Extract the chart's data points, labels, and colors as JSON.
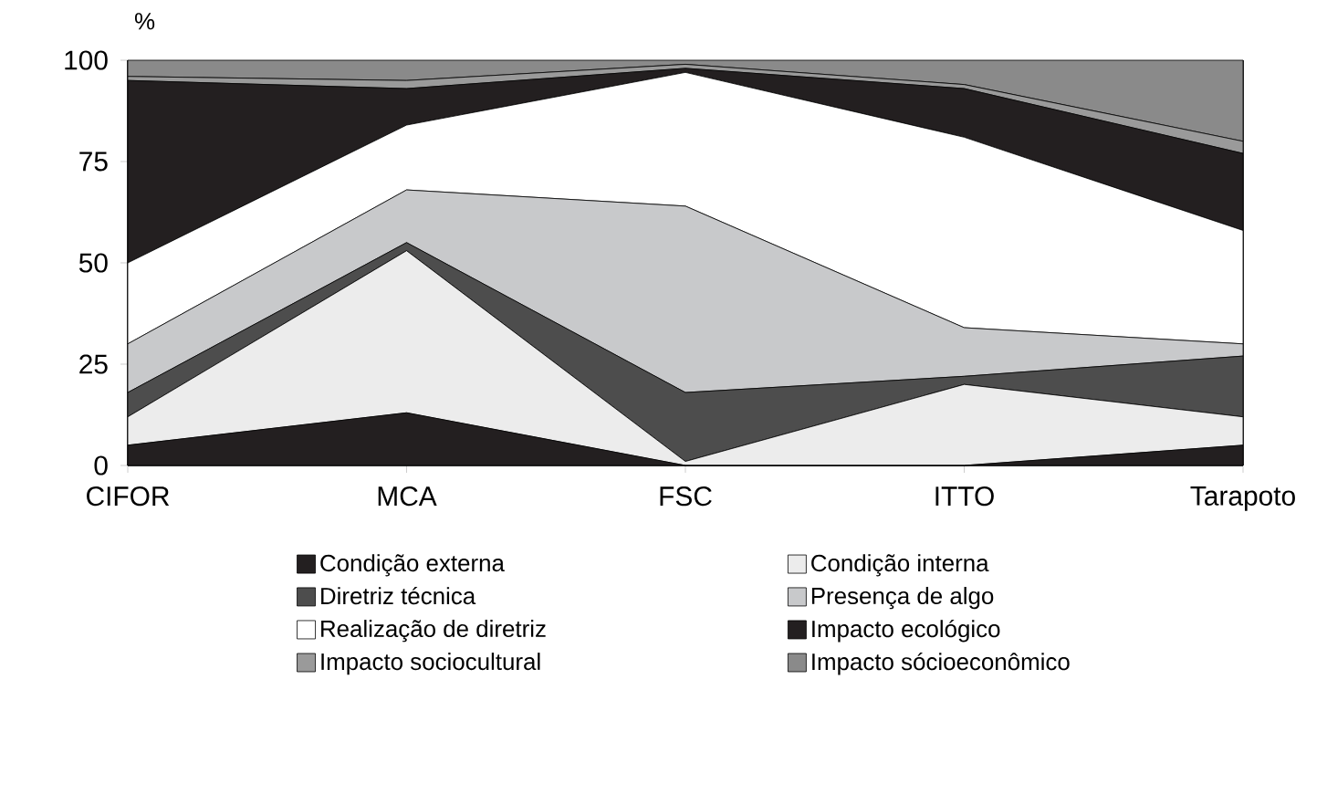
{
  "chart_data": {
    "type": "area",
    "stacked": true,
    "ylabel": "%",
    "categories": [
      "CIFOR",
      "MCA",
      "FSC",
      "ITTO",
      "Tarapoto"
    ],
    "series": [
      {
        "name": "Condição externa",
        "color": "#231f20",
        "values": [
          5,
          13,
          0,
          0,
          5
        ]
      },
      {
        "name": "Condição interna",
        "color": "#ececec",
        "values": [
          7,
          40,
          1,
          20,
          7
        ]
      },
      {
        "name": "Diretriz técnica",
        "color": "#4d4d4d",
        "values": [
          6,
          2,
          17,
          2,
          15
        ]
      },
      {
        "name": "Presença de algo",
        "color": "#c8c9cb",
        "values": [
          12,
          13,
          46,
          12,
          3
        ]
      },
      {
        "name": "Realização de diretriz",
        "color": "#ffffff",
        "values": [
          20,
          16,
          33,
          47,
          28
        ]
      },
      {
        "name": "Impacto ecológico",
        "color": "#231f20",
        "values": [
          45,
          9,
          1,
          12,
          19
        ]
      },
      {
        "name": "Impacto sociocultural",
        "color": "#9a9a9a",
        "values": [
          1,
          2,
          1,
          1,
          3
        ]
      },
      {
        "name": "Impacto sócioeconômico",
        "color": "#8a8a8a",
        "values": [
          4,
          5,
          1,
          6,
          20
        ]
      }
    ],
    "ylim": [
      0,
      100
    ],
    "yticks": [
      0,
      25,
      50,
      75,
      100
    ],
    "grid": false,
    "legend": "bottom"
  }
}
